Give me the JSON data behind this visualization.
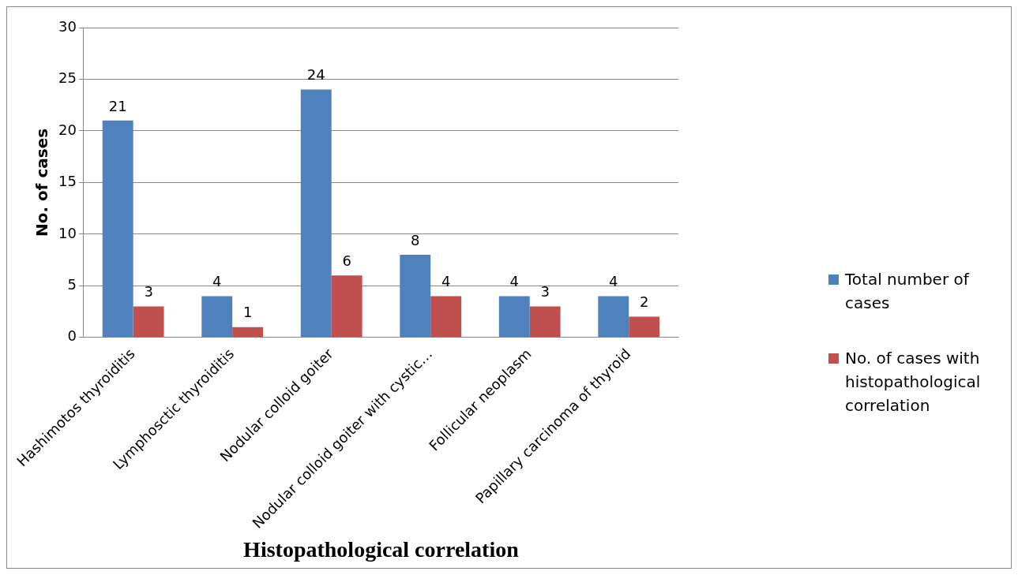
{
  "chart_data": {
    "type": "bar",
    "xlabel": "Histopathological correlation",
    "ylabel": "No. of cases",
    "categories": [
      "Hashimotos thyroiditis",
      "Lymphosctic thyroiditis",
      "Nodular colloid goiter",
      "Nodular colloid goiter with cystic…",
      "Follicular neoplasm",
      "Papillary carcinoma of thyroid"
    ],
    "series": [
      {
        "name": "Total number of cases",
        "color": "#4f81bd",
        "values": [
          21,
          4,
          24,
          8,
          4,
          4
        ]
      },
      {
        "name": "No. of cases with histopathological correlation",
        "color": "#c0504d",
        "values": [
          3,
          1,
          6,
          4,
          3,
          2
        ]
      }
    ],
    "ylim": [
      0,
      30
    ],
    "yticks": [
      0,
      5,
      10,
      15,
      20,
      25,
      30
    ],
    "grid": "y",
    "legend": "right",
    "data_labels": true
  }
}
